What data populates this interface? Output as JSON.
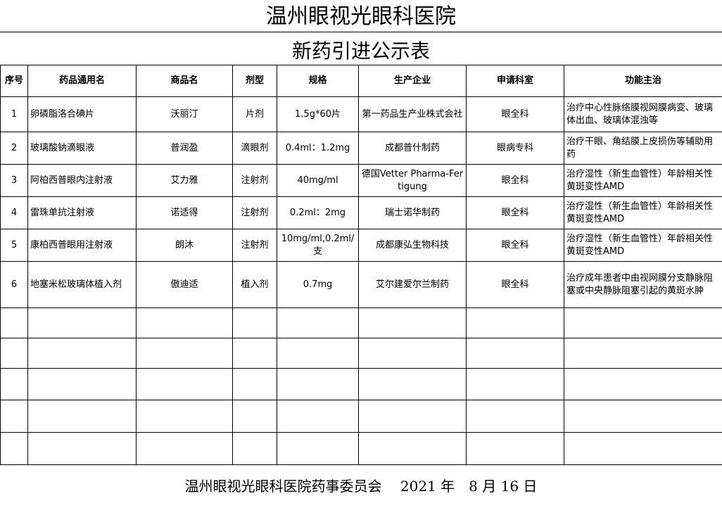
{
  "title": "温州眼视光眼科医院",
  "subtitle": "新药引进公示表",
  "headers": [
    "序号",
    "药品通用名",
    "商品名",
    "剂型",
    "规格",
    "生产企业",
    "申请科室",
    "功能主治"
  ],
  "rows": [
    [
      "1",
      "卵磷脂洛合碘片",
      "沃丽汀",
      "片剂",
      "1.5g*60片",
      "第一药品生产业株式会社",
      "眼全科",
      "治疗中心性脉络膜视网膜病变、玻璃体出血、玻璃体混浊等"
    ],
    [
      "2",
      "玻璃酸钠滴眼液",
      "普润盈",
      "滴眼剂",
      "0.4ml：1.2mg",
      "成都普什制药",
      "眼病专科",
      "治疗干眼、角结膜上皮损伤等辅助用药"
    ],
    [
      "3",
      "阿柏西普眼内注射液",
      "艾力雅",
      "注射剂",
      "40mg/ml",
      "德国Vetter Pharma-Fertigung",
      "眼全科",
      "治疗湿性（新生血管性）年龄相关性黄斑变性AMD"
    ],
    [
      "4",
      "雷珠单抗注射液",
      "诺适得",
      "注射剂",
      "0.2ml：2mg",
      "瑞士诺华制药",
      "眼全科",
      "治疗湿性（新生血管性）年龄相关性黄斑变性AMD"
    ],
    [
      "5",
      "康柏西普眼用注射液",
      "朗沐",
      "注射剂",
      "10mg/ml,0.2ml/支",
      "成都康弘生物科技",
      "眼全科",
      "治疗湿性（新生血管性）年龄相关性黄斑变性AMD"
    ],
    [
      "6",
      "地塞米松玻璃体植入剂",
      "傲迪适",
      "植入剂",
      "0.7mg",
      "艾尔建爱尔兰制药",
      "眼全科",
      "治疗成年患者中由视网膜分支静脉阻塞或中央静脉阻塞引起的黄斑水肿"
    ]
  ],
  "footer": "温州眼视光眼科医院药事委员会　 2021 年　8 月 16 日"
}
